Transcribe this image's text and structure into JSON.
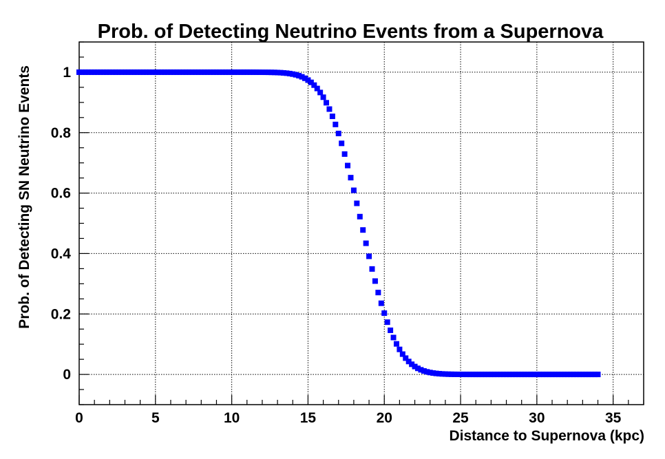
{
  "chart_data": {
    "type": "scatter",
    "title": "Prob. of Detecting Neutrino Events from a Supernova",
    "xlabel": "Distance to Supernova (kpc)",
    "ylabel": "Prob. of Detecting SN Neutrino Events",
    "xlim": [
      0,
      37
    ],
    "ylim": [
      -0.1,
      1.1
    ],
    "x_ticks": [
      0,
      5,
      10,
      15,
      20,
      25,
      30,
      35
    ],
    "x_tick_labels": [
      "0",
      "5",
      "10",
      "15",
      "20",
      "25",
      "30",
      "35"
    ],
    "y_ticks": [
      0,
      0.2,
      0.4,
      0.6,
      0.8,
      1
    ],
    "y_tick_labels": [
      "0",
      "0.2",
      "0.4",
      "0.6",
      "0.8",
      "1"
    ],
    "grid": true,
    "marker": "square",
    "series_color": "#0000ff",
    "curve_model": {
      "description": "complementary error function (Poisson detection probability) sampled every 0.2 kpc",
      "x_start": 0,
      "x_end": 34,
      "x_step": 0.2,
      "midpoint_kpc": 18.5,
      "width_kpc": 2.55
    },
    "points": [
      {
        "x": 0,
        "y": 1.0
      },
      {
        "x": 5,
        "y": 1.0
      },
      {
        "x": 10,
        "y": 0.995
      },
      {
        "x": 12,
        "y": 0.98
      },
      {
        "x": 14,
        "y": 0.93
      },
      {
        "x": 15,
        "y": 0.88
      },
      {
        "x": 16,
        "y": 0.81
      },
      {
        "x": 17,
        "y": 0.7
      },
      {
        "x": 18,
        "y": 0.57
      },
      {
        "x": 19,
        "y": 0.43
      },
      {
        "x": 20,
        "y": 0.3
      },
      {
        "x": 21,
        "y": 0.19
      },
      {
        "x": 22,
        "y": 0.1
      },
      {
        "x": 23,
        "y": 0.04
      },
      {
        "x": 24,
        "y": 0.015
      },
      {
        "x": 25,
        "y": 0.005
      },
      {
        "x": 27,
        "y": 0.0
      },
      {
        "x": 30,
        "y": 0.0
      },
      {
        "x": 34,
        "y": 0.0
      }
    ]
  }
}
